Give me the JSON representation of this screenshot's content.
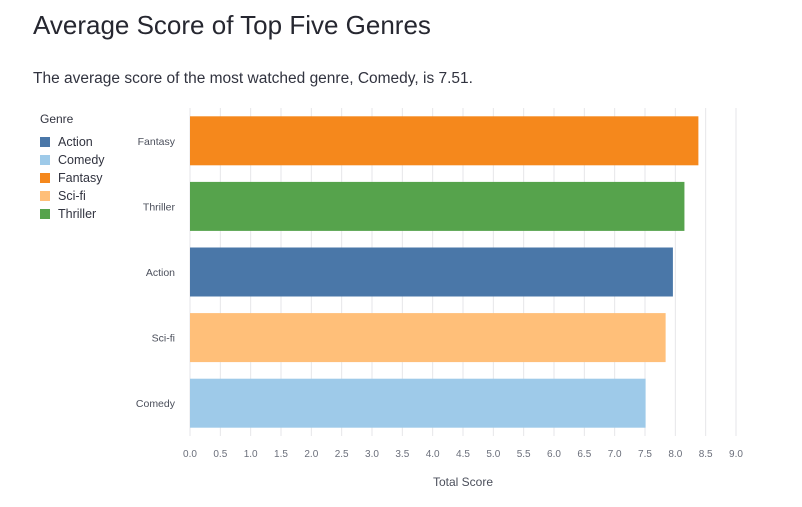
{
  "page": {
    "title": "Average Score of Top Five Genres",
    "subtitle": "The average score of the most watched genre, Comedy, is 7.51."
  },
  "legend": {
    "title": "Genre",
    "items": [
      {
        "label": "Action",
        "color": "#4a77a8"
      },
      {
        "label": "Comedy",
        "color": "#9ecae9"
      },
      {
        "label": "Fantasy",
        "color": "#f5881c"
      },
      {
        "label": "Sci-fi",
        "color": "#ffbf79"
      },
      {
        "label": "Thriller",
        "color": "#56a34c"
      }
    ]
  },
  "chart_data": {
    "type": "bar",
    "orientation": "horizontal",
    "categories": [
      "Fantasy",
      "Thriller",
      "Action",
      "Sci-fi",
      "Comedy"
    ],
    "values": [
      8.38,
      8.15,
      7.96,
      7.84,
      7.51
    ],
    "colors": [
      "#f5881c",
      "#56a34c",
      "#4a77a8",
      "#ffbf79",
      "#9ecae9"
    ],
    "xlabel": "Total Score",
    "xlim": [
      0,
      9.0
    ],
    "xticks": [
      "0.0",
      "0.5",
      "1.0",
      "1.5",
      "2.0",
      "2.5",
      "3.0",
      "3.5",
      "4.0",
      "4.5",
      "5.0",
      "5.5",
      "6.0",
      "6.5",
      "7.0",
      "7.5",
      "8.0",
      "8.5",
      "9.0"
    ],
    "grid": true,
    "legend_position": "left"
  }
}
